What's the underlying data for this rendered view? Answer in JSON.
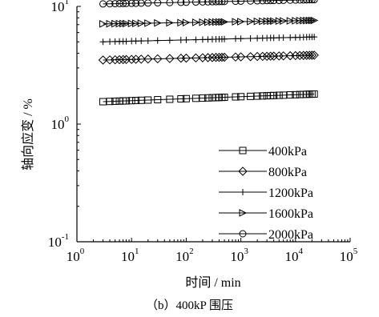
{
  "chart_data": {
    "type": "scatter",
    "x_scale": "log",
    "y_scale": "log",
    "xlim": [
      1,
      100000
    ],
    "ylim": [
      0.1,
      10
    ],
    "xlabel": "时间 / min",
    "ylabel": "轴向应变 / %",
    "x_ticks": [
      {
        "base": "10",
        "exp": "0"
      },
      {
        "base": "10",
        "exp": "1"
      },
      {
        "base": "10",
        "exp": "2"
      },
      {
        "base": "10",
        "exp": "3"
      },
      {
        "base": "10",
        "exp": "4"
      },
      {
        "base": "10",
        "exp": "5"
      }
    ],
    "y_ticks": [
      {
        "base": "10",
        "exp": "-1"
      },
      {
        "base": "10",
        "exp": "0"
      },
      {
        "base": "10",
        "exp": "1"
      }
    ],
    "grid": false,
    "legend_position": "bottom-right",
    "series": [
      {
        "name": "400kPa",
        "marker": "square",
        "y_start": 1.55,
        "y_end": 1.8
      },
      {
        "name": "800kPa",
        "marker": "diamond",
        "y_start": 3.5,
        "y_end": 3.85
      },
      {
        "name": "1200kPa",
        "marker": "plus",
        "y_start": 5.0,
        "y_end": 5.5
      },
      {
        "name": "1600kPa",
        "marker": "triangle-right",
        "y_start": 7.1,
        "y_end": 7.6
      },
      {
        "name": "2000kPa",
        "marker": "circle",
        "y_start": 10.5,
        "y_end": 11.4
      }
    ],
    "x_values": [
      3,
      4,
      5,
      6,
      7,
      8,
      10,
      12,
      15,
      20,
      30,
      50,
      80,
      100,
      150,
      200,
      250,
      300,
      350,
      400,
      450,
      500,
      800,
      1000,
      1500,
      2000,
      2500,
      3000,
      3500,
      4000,
      5000,
      6000,
      8000,
      10000,
      12000,
      14000,
      16000,
      18000,
      20000,
      22000
    ]
  },
  "caption": "（b）400kP 围压"
}
